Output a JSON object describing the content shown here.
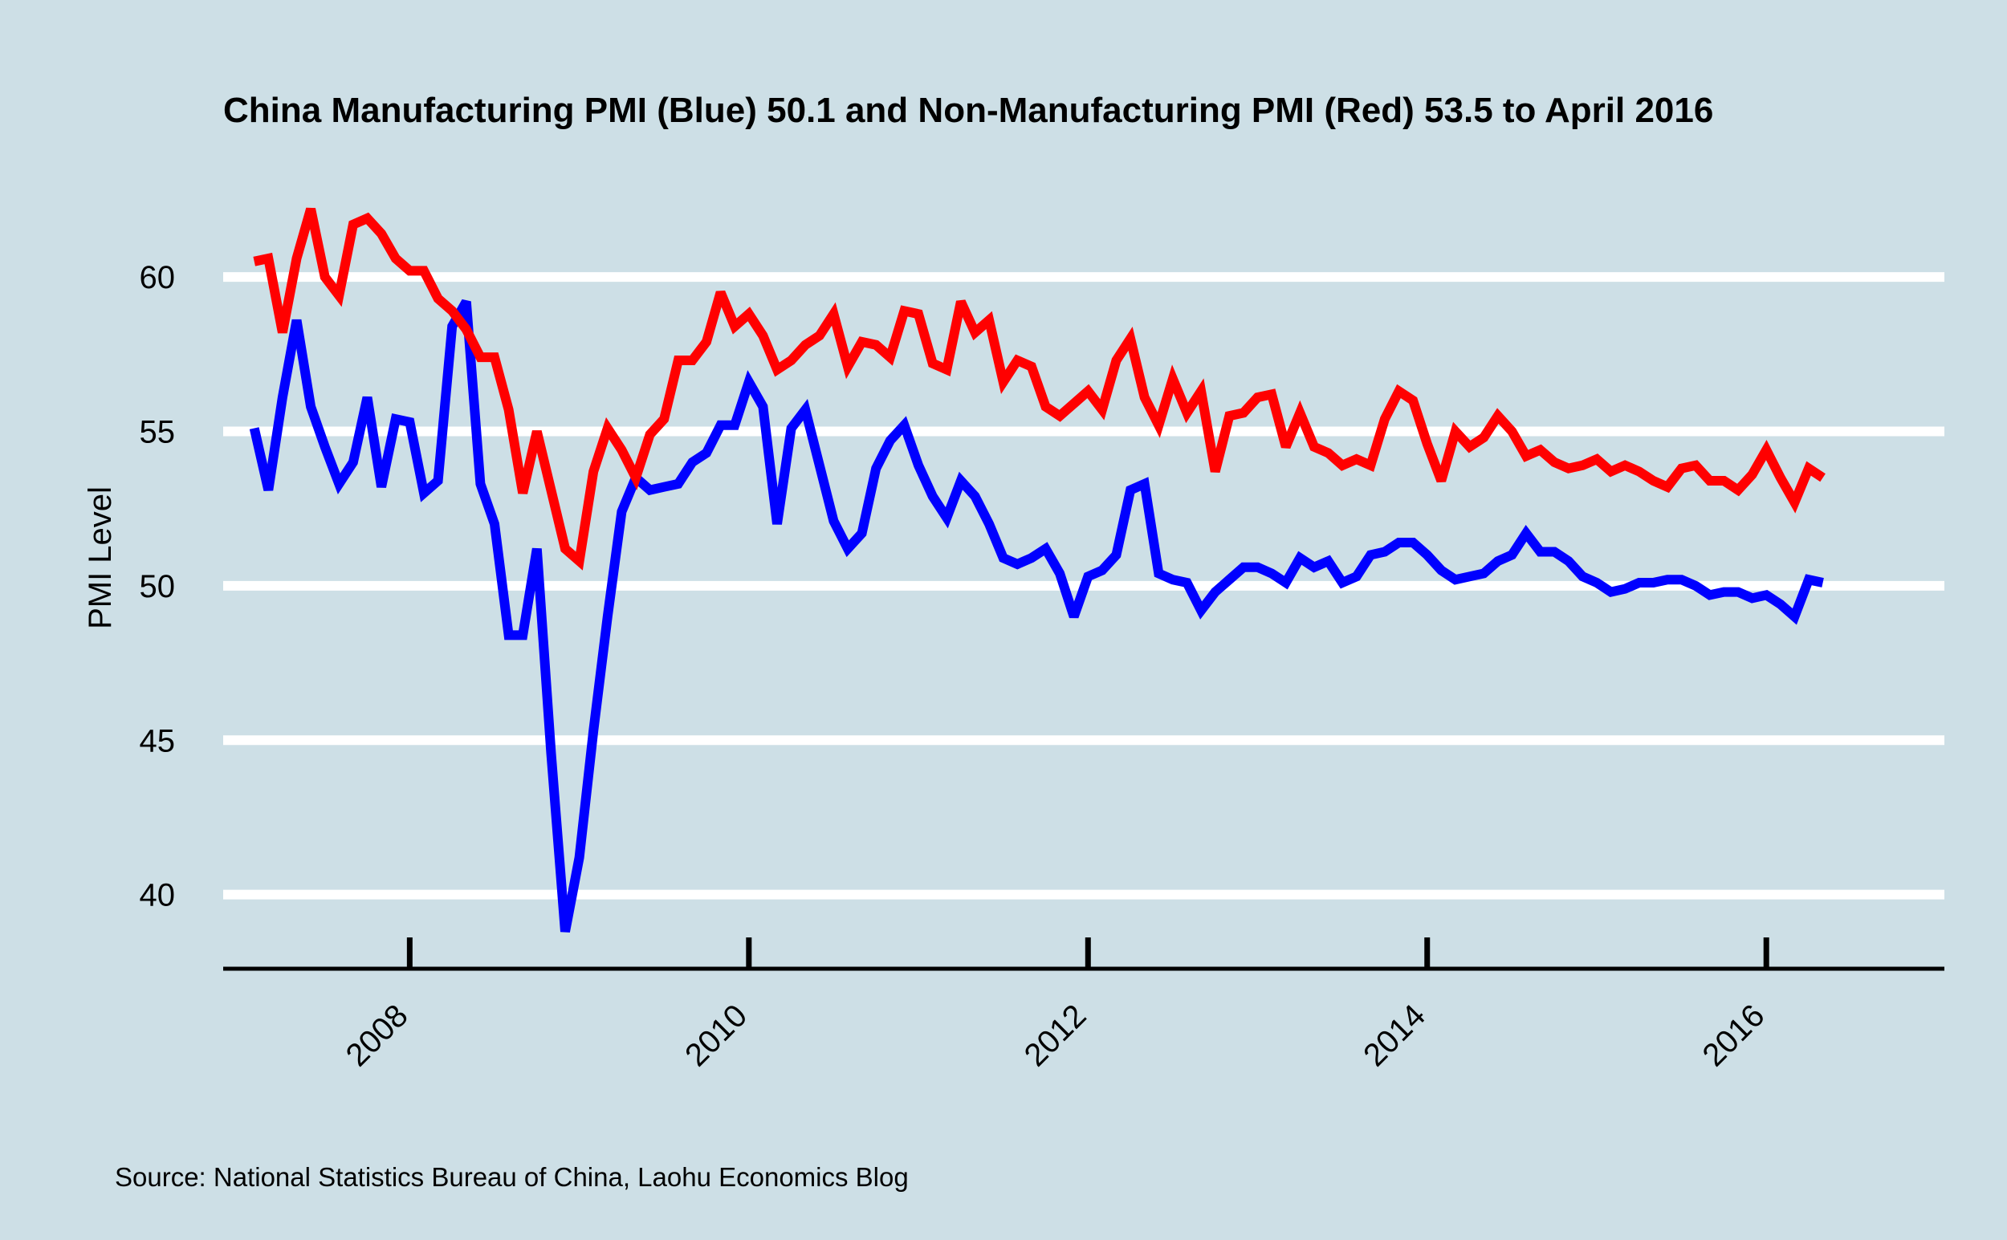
{
  "chart_data": {
    "type": "line",
    "title": "China Manufacturing PMI (Blue) 50.1 and Non-Manufacturing PMI (Red) 53.5 to April 2016",
    "xlabel": "",
    "ylabel": "PMI Level",
    "source": "Source: National Statistics Bureau of China, Laohu Economics Blog",
    "xlim": [
      2006.9,
      2017.05
    ],
    "ylim": [
      37.6,
      63.9
    ],
    "x_ticks": [
      2008,
      2010,
      2012,
      2014,
      2016
    ],
    "x_tick_labels": [
      "2008",
      "2010",
      "2012",
      "2014",
      "2016"
    ],
    "y_ticks": [
      40,
      45,
      50,
      55,
      60
    ],
    "y_tick_labels": [
      "40",
      "45",
      "50",
      "55",
      "60"
    ],
    "grid": "horizontal",
    "start": [
      2007,
      2
    ],
    "series": [
      {
        "color": "#0000ff",
        "values": [
          55.1,
          53.1,
          56.1,
          58.6,
          55.8,
          54.5,
          53.3,
          54.0,
          56.1,
          53.2,
          55.4,
          55.3,
          53.0,
          53.4,
          58.4,
          59.2,
          53.3,
          52.0,
          48.4,
          48.4,
          51.2,
          44.6,
          38.8,
          41.2,
          45.3,
          49.0,
          52.4,
          53.5,
          53.1,
          53.2,
          53.3,
          54.0,
          54.3,
          55.2,
          55.2,
          56.6,
          55.8,
          52.0,
          55.1,
          55.7,
          53.9,
          52.1,
          51.2,
          51.7,
          53.8,
          54.7,
          55.2,
          53.9,
          52.9,
          52.2,
          53.4,
          52.9,
          52.0,
          50.9,
          50.7,
          50.9,
          51.2,
          50.4,
          49.0,
          50.3,
          50.5,
          51.0,
          53.1,
          53.3,
          50.4,
          50.2,
          50.1,
          49.2,
          49.8,
          50.2,
          50.6,
          50.6,
          50.4,
          50.1,
          50.9,
          50.6,
          50.8,
          50.1,
          50.3,
          51.0,
          51.1,
          51.4,
          51.4,
          51.0,
          50.5,
          50.2,
          50.3,
          50.4,
          50.8,
          51.0,
          51.7,
          51.1,
          51.1,
          50.8,
          50.3,
          50.1,
          49.8,
          49.9,
          50.1,
          50.1,
          50.2,
          50.2,
          50.0,
          49.7,
          49.8,
          49.8,
          49.6,
          49.7,
          49.4,
          49.0,
          50.2,
          50.1
        ]
      },
      {
        "color": "#ff0000",
        "values": [
          60.5,
          60.6,
          58.2,
          60.6,
          62.2,
          60.0,
          59.4,
          61.7,
          61.9,
          61.4,
          60.6,
          60.2,
          60.2,
          59.3,
          58.9,
          58.3,
          57.4,
          57.4,
          55.7,
          53.0,
          55.0,
          53.1,
          51.2,
          50.8,
          53.7,
          55.1,
          54.4,
          53.5,
          54.9,
          55.4,
          57.3,
          57.3,
          57.9,
          59.5,
          58.4,
          58.8,
          58.1,
          57.0,
          57.3,
          57.8,
          58.1,
          58.8,
          57.1,
          57.9,
          57.8,
          57.4,
          58.9,
          58.8,
          57.2,
          57.0,
          59.2,
          58.2,
          58.6,
          56.6,
          57.3,
          57.1,
          55.8,
          55.5,
          55.9,
          56.3,
          55.7,
          57.3,
          58.0,
          56.1,
          55.2,
          56.7,
          55.6,
          56.3,
          53.7,
          55.5,
          55.6,
          56.1,
          56.2,
          54.5,
          55.6,
          54.5,
          54.3,
          53.9,
          54.1,
          53.9,
          55.4,
          56.3,
          56.0,
          54.6,
          53.4,
          55.0,
          54.5,
          54.8,
          55.5,
          55.0,
          54.2,
          54.4,
          54.0,
          53.8,
          53.9,
          54.1,
          53.7,
          53.9,
          53.7,
          53.4,
          53.2,
          53.8,
          53.9,
          53.4,
          53.4,
          53.1,
          53.6,
          54.4,
          53.5,
          52.7,
          53.8,
          53.5
        ]
      }
    ]
  },
  "colors": {
    "background": "#cddfe6",
    "gridline": "#ffffff",
    "axis": "#000000"
  }
}
